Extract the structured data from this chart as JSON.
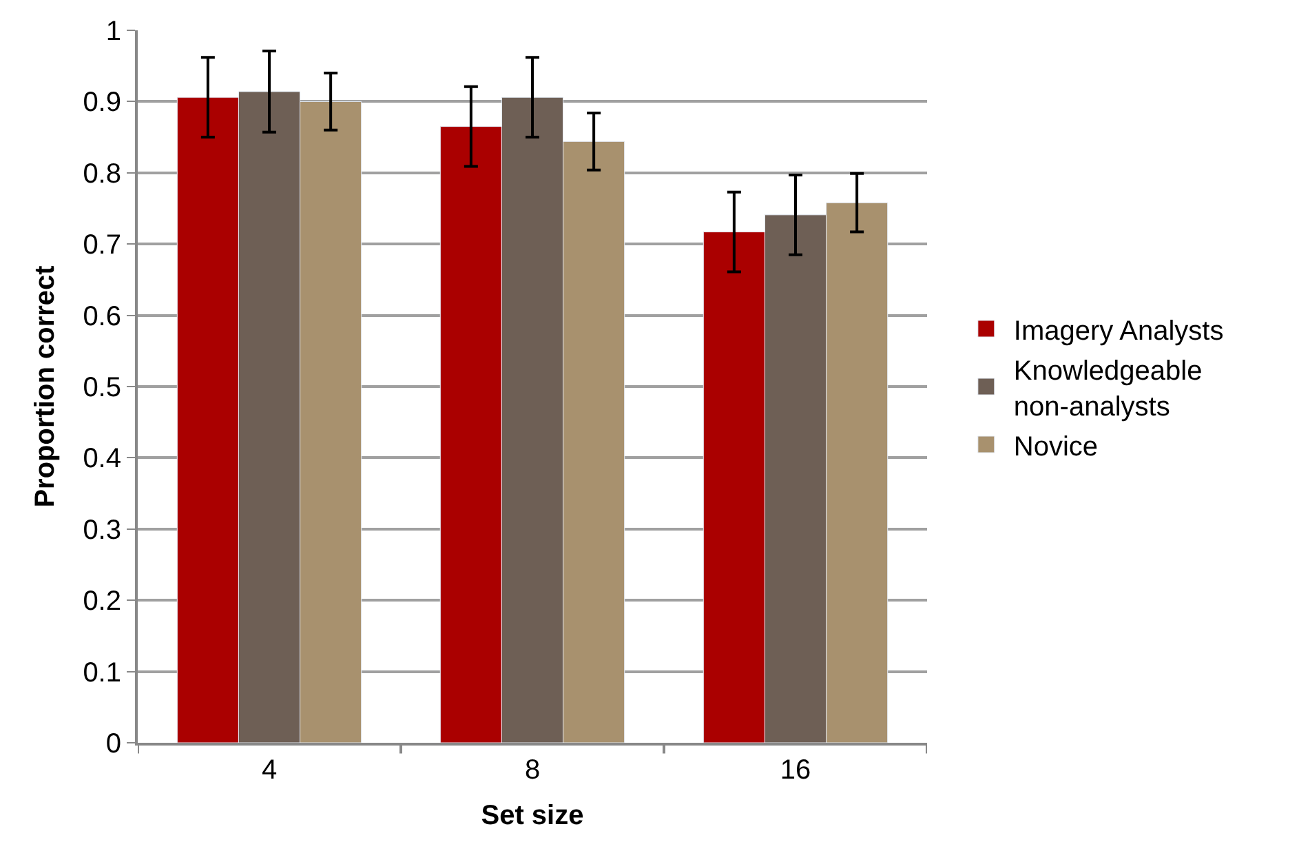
{
  "chart_data": {
    "type": "bar",
    "xlabel": "Set size",
    "ylabel": "Proportion correct",
    "categories": [
      "4",
      "8",
      "16"
    ],
    "series": [
      {
        "name": "Imagery Analysts",
        "color": "#aa0000",
        "values": [
          0.906,
          0.865,
          0.717
        ],
        "errors": [
          0.056,
          0.056,
          0.056
        ]
      },
      {
        "name": "Knowledgeable\nnon-analysts",
        "color": "#6e5f55",
        "values": [
          0.914,
          0.906,
          0.741
        ],
        "errors": [
          0.057,
          0.056,
          0.056
        ]
      },
      {
        "name": "Novice",
        "color": "#a8916e",
        "values": [
          0.9,
          0.844,
          0.758
        ],
        "errors": [
          0.04,
          0.04,
          0.041
        ]
      }
    ],
    "ylim": [
      0,
      1
    ],
    "yticks": [
      0,
      0.1,
      0.2,
      0.3,
      0.4,
      0.5,
      0.6,
      0.7,
      0.8,
      0.9,
      1
    ],
    "grid": "y",
    "legend": "right"
  }
}
